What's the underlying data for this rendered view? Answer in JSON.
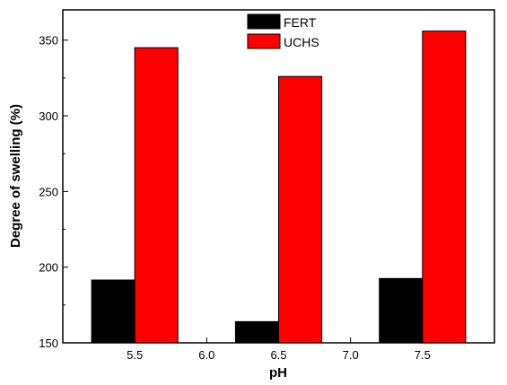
{
  "chart_data": {
    "type": "bar",
    "xlabel": "pH",
    "ylabel": "Degree of swelling (%)",
    "categories": [
      "5.5",
      "6.5",
      "7.5"
    ],
    "x_ticks": [
      "5.5",
      "6.0",
      "6.5",
      "7.0",
      "7.5"
    ],
    "y_ticks": [
      150,
      200,
      250,
      300,
      350
    ],
    "xlim": [
      5.0,
      8.0
    ],
    "ylim": [
      150,
      370
    ],
    "grid": false,
    "legend_position": "top-center",
    "series": [
      {
        "name": "FERT",
        "color": "#000000",
        "values": [
          191.5,
          164,
          192.5
        ]
      },
      {
        "name": "UCHS",
        "color": "#ff0000",
        "values": [
          345,
          326,
          356
        ]
      }
    ]
  }
}
